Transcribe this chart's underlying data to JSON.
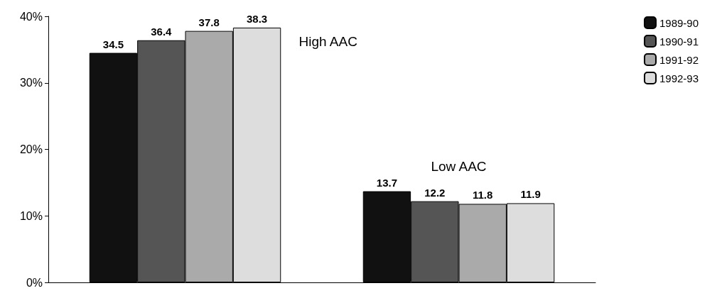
{
  "chart_data": {
    "type": "bar",
    "categories": [
      null,
      null
    ],
    "annotations": [
      "High AAC",
      "Low AAC"
    ],
    "series": [
      {
        "name": "1989-90",
        "color": "#111111",
        "values": [
          34.5,
          13.7
        ]
      },
      {
        "name": "1990-91",
        "color": "#555555",
        "values": [
          36.4,
          12.2
        ]
      },
      {
        "name": "1991-92",
        "color": "#aaaaaa",
        "values": [
          37.8,
          11.8
        ]
      },
      {
        "name": "1992-93",
        "color": "#dddddd",
        "values": [
          38.3,
          11.9
        ]
      }
    ],
    "ylim": [
      0,
      40
    ],
    "yticks": [
      {
        "value": 0,
        "label": "0%"
      },
      {
        "value": 10,
        "label": "10%"
      },
      {
        "value": 20,
        "label": "20%"
      },
      {
        "value": 30,
        "label": "30%"
      },
      {
        "value": 40,
        "label": "40%"
      }
    ],
    "data_labels": true,
    "legend": "top right",
    "grid": false
  }
}
